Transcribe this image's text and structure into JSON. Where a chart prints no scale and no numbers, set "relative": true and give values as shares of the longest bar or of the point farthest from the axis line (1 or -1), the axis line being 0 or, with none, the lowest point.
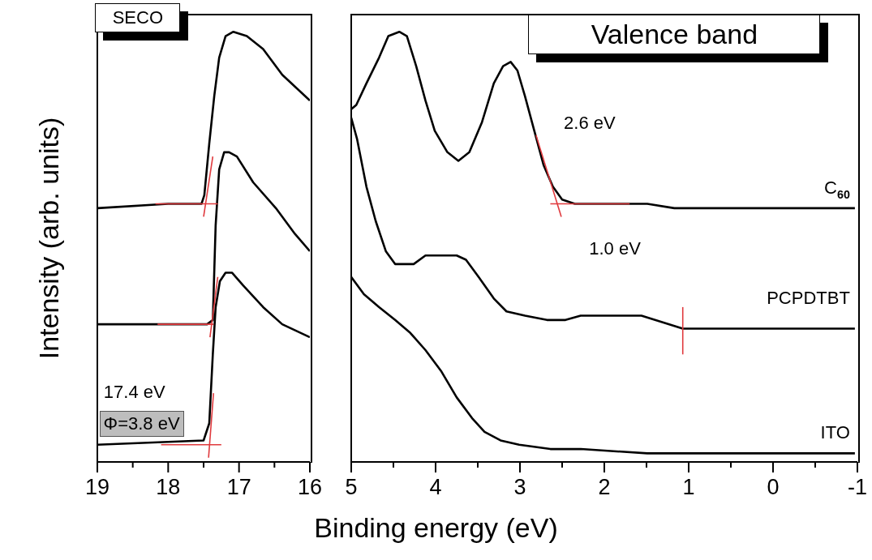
{
  "chart_data": [
    {
      "type": "line",
      "title": null,
      "ylabel": "Intensity (arb. units)",
      "relative": true,
      "xlim": [
        19,
        16
      ],
      "xticks": [
        19,
        {
          "value": 18.5,
          "label": null
        },
        18,
        {
          "value": 17.5,
          "label": null
        },
        17,
        {
          "value": 16.5,
          "label": null
        },
        16
      ],
      "marker": "none",
      "line_style": "solid",
      "annotations": [
        "SECO",
        "17.4 eV",
        "Φ=3.8 eV"
      ],
      "series": [
        {
          "color": "#000000",
          "x": [
            19,
            18,
            17.53,
            17.49,
            17.42,
            17.35,
            17.28,
            17.19,
            17.08,
            16.89,
            16.66,
            16.39,
            16.0
          ],
          "values": [
            0.59,
            0.6,
            0.6,
            0.62,
            0.74,
            0.85,
            0.94,
            0.99,
            1.0,
            0.99,
            0.96,
            0.9,
            0.84
          ]
        },
        {
          "color": "#000000",
          "x": [
            19,
            17.45,
            17.37,
            17.33,
            17.28,
            17.21,
            17.14,
            17.03,
            16.8,
            16.48,
            16.21,
            16.0
          ],
          "values": [
            0.32,
            0.32,
            0.33,
            0.55,
            0.68,
            0.72,
            0.72,
            0.71,
            0.65,
            0.59,
            0.53,
            0.49
          ]
        },
        {
          "color": "#000000",
          "x": [
            19,
            17.5,
            17.42,
            17.37,
            17.33,
            17.27,
            17.19,
            17.1,
            16.94,
            16.66,
            16.39,
            16.0
          ],
          "values": [
            0.04,
            0.05,
            0.09,
            0.25,
            0.36,
            0.42,
            0.44,
            0.44,
            0.41,
            0.36,
            0.32,
            0.29
          ]
        },
        {
          "color": "#e03a3e",
          "x": [
            18.18,
            17.3
          ],
          "values": [
            0.6,
            0.6
          ]
        },
        {
          "color": "#e03a3e",
          "x": [
            17.5,
            17.37
          ],
          "values": [
            0.57,
            0.71
          ]
        },
        {
          "color": "#e03a3e",
          "x": [
            18.15,
            17.36
          ],
          "values": [
            0.32,
            0.32
          ]
        },
        {
          "color": "#e03a3e",
          "x": [
            17.41,
            17.3
          ],
          "values": [
            0.29,
            0.43
          ]
        },
        {
          "color": "#e03a3e",
          "x": [
            18.1,
            17.25
          ],
          "values": [
            0.04,
            0.04
          ]
        },
        {
          "color": "#e03a3e",
          "x": [
            17.43,
            17.36
          ],
          "values": [
            0.01,
            0.16
          ]
        }
      ]
    },
    {
      "type": "line",
      "title": null,
      "xlabel": "Binding energy (eV)",
      "relative": true,
      "xlim": [
        5,
        -1
      ],
      "xticks": [
        5,
        {
          "value": 4.5,
          "label": null
        },
        4,
        {
          "value": 3.5,
          "label": null
        },
        3,
        {
          "value": 2.5,
          "label": null
        },
        2,
        {
          "value": 1.5,
          "label": null
        },
        1,
        {
          "value": 0.5,
          "label": null
        },
        0,
        {
          "value": -0.5,
          "label": null
        },
        -1
      ],
      "marker": "none",
      "line_style": "solid",
      "annotations": [
        "Valence band",
        "2.6 eV",
        "1.0 eV"
      ],
      "series": [
        {
          "name": "C$_{60}$",
          "color": "#000000",
          "x": [
            5,
            4.94,
            4.82,
            4.67,
            4.56,
            4.43,
            4.34,
            4.23,
            4.12,
            4.01,
            3.86,
            3.73,
            3.6,
            3.45,
            3.31,
            3.2,
            3.11,
            3.03,
            2.94,
            2.83,
            2.72,
            2.61,
            2.5,
            2.35,
            2.13,
            1.49,
            1.17,
            0,
            -0.97
          ],
          "values": [
            0.82,
            0.83,
            0.88,
            0.94,
            0.99,
            1.0,
            0.99,
            0.92,
            0.84,
            0.77,
            0.72,
            0.7,
            0.72,
            0.79,
            0.88,
            0.92,
            0.93,
            0.91,
            0.85,
            0.77,
            0.69,
            0.64,
            0.61,
            0.6,
            0.6,
            0.6,
            0.59,
            0.59,
            0.59
          ]
        },
        {
          "name": "PCPDTBT",
          "color": "#000000",
          "x": [
            5,
            4.93,
            4.82,
            4.71,
            4.59,
            4.48,
            4.39,
            4.26,
            4.12,
            3.93,
            3.75,
            3.64,
            3.49,
            3.31,
            3.16,
            2.94,
            2.68,
            2.46,
            2.28,
            1.97,
            1.56,
            1.23,
            1.07,
            0.22,
            -0.97
          ],
          "values": [
            0.8,
            0.75,
            0.64,
            0.56,
            0.49,
            0.46,
            0.46,
            0.46,
            0.48,
            0.48,
            0.48,
            0.47,
            0.43,
            0.38,
            0.35,
            0.34,
            0.33,
            0.33,
            0.34,
            0.34,
            0.34,
            0.32,
            0.31,
            0.31,
            0.31
          ]
        },
        {
          "name": "ITO",
          "color": "#000000",
          "x": [
            5,
            4.85,
            4.67,
            4.48,
            4.3,
            4.12,
            3.93,
            3.75,
            3.56,
            3.42,
            3.23,
            3.01,
            2.64,
            2.28,
            1.49,
            1.17,
            -0.97
          ],
          "values": [
            0.43,
            0.39,
            0.36,
            0.33,
            0.3,
            0.26,
            0.21,
            0.15,
            0.1,
            0.07,
            0.05,
            0.04,
            0.03,
            0.03,
            0.02,
            0.02,
            0.02
          ]
        },
        {
          "color": "#e03a3e",
          "x": [
            2.81,
            2.51
          ],
          "values": [
            0.76,
            0.57
          ]
        },
        {
          "color": "#e03a3e",
          "x": [
            2.64,
            1.7
          ],
          "values": [
            0.6,
            0.6
          ]
        },
        {
          "color": "#e03a3e",
          "x": [
            1.07,
            1.07
          ],
          "values": [
            0.36,
            0.25
          ]
        }
      ]
    }
  ]
}
